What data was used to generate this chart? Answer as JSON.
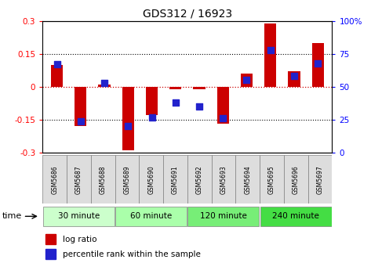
{
  "title": "GDS312 / 16923",
  "samples": [
    "GSM5686",
    "GSM5687",
    "GSM5688",
    "GSM5689",
    "GSM5690",
    "GSM5691",
    "GSM5692",
    "GSM5693",
    "GSM5694",
    "GSM5695",
    "GSM5696",
    "GSM5697"
  ],
  "log_ratio": [
    0.1,
    -0.18,
    0.01,
    -0.29,
    -0.13,
    -0.01,
    -0.01,
    -0.17,
    0.06,
    0.29,
    0.07,
    0.2
  ],
  "percentile": [
    67,
    24,
    53,
    20,
    27,
    38,
    35,
    26,
    55,
    78,
    58,
    68
  ],
  "ylim": [
    -0.3,
    0.3
  ],
  "yticks_left": [
    -0.3,
    -0.15,
    0,
    0.15,
    0.3
  ],
  "yticks_right": [
    0,
    25,
    50,
    75,
    100
  ],
  "bar_color": "#cc0000",
  "dot_color": "#2222cc",
  "hline_color": "#cc0000",
  "dotted_color": "#000000",
  "groups": [
    {
      "label": "30 minute",
      "start": 0,
      "end": 2,
      "color": "#ccffcc"
    },
    {
      "label": "60 minute",
      "start": 3,
      "end": 5,
      "color": "#aaffaa"
    },
    {
      "label": "120 minute",
      "start": 6,
      "end": 8,
      "color": "#77ee77"
    },
    {
      "label": "240 minute",
      "start": 9,
      "end": 11,
      "color": "#44dd44"
    }
  ],
  "xlabel_time": "time",
  "legend_log": "log ratio",
  "legend_pct": "percentile rank within the sample",
  "bar_width": 0.5,
  "dot_size": 28
}
